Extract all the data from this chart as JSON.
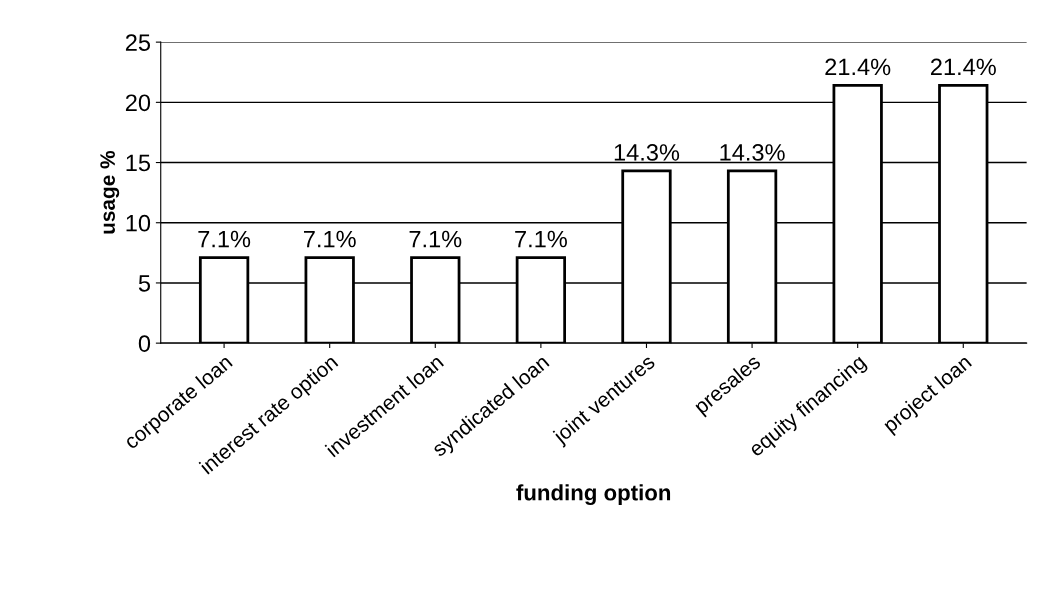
{
  "chart_data": {
    "type": "bar",
    "xlabel": "funding option",
    "ylabel": "usage %",
    "categories": [
      "corporate loan",
      "interest rate option",
      "investment loan",
      "syndicated loan",
      "joint ventures",
      "presales",
      "equity financing",
      "project loan"
    ],
    "values": [
      7.1,
      7.1,
      7.1,
      7.1,
      14.3,
      14.3,
      21.4,
      21.4
    ],
    "value_labels": [
      "7.1%",
      "7.1%",
      "7.1%",
      "7.1%",
      "14.3%",
      "14.3%",
      "21.4%",
      "21.4%"
    ],
    "color": "#ffffff",
    "ylim": [
      0,
      25
    ],
    "yticks": [
      0,
      5,
      10,
      15,
      20,
      25
    ],
    "grid": "y"
  }
}
